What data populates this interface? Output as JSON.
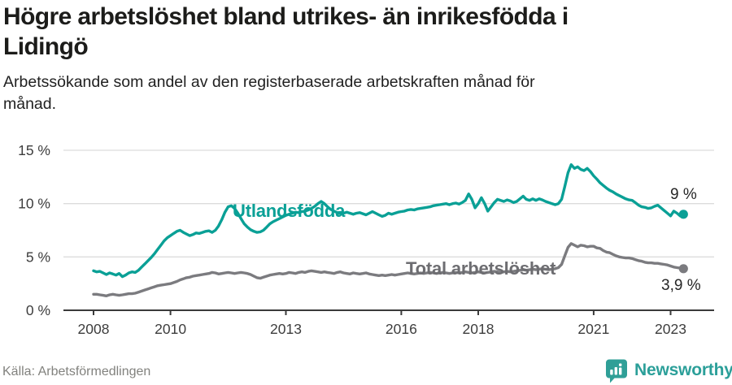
{
  "header": {
    "title_lines": [
      "Högre arbetslöshet bland utrikes- än inrikesfödda i",
      "Lidingö"
    ],
    "subtitle_lines": [
      "Arbetssökande som andel av den registerbaserade arbetskraften månad för",
      "månad."
    ]
  },
  "chart_data": {
    "type": "line",
    "title": "Högre arbetslöshet bland utrikes- än inrikesfödda i Lidingö",
    "subtitle": "Arbetssökande som andel av den registerbaserade arbetskraften månad för månad.",
    "x_start": "2008-01",
    "x_end": "2023-05",
    "x_frequency": "monthly",
    "ylim": [
      0,
      15
    ],
    "grid": "horizontal",
    "y_ticks": [
      {
        "value": 0,
        "label": "0 %"
      },
      {
        "value": 5,
        "label": "5 %"
      },
      {
        "value": 10,
        "label": "10 %"
      },
      {
        "value": 15,
        "label": "15 %"
      }
    ],
    "x_ticks": [
      {
        "year": 2008,
        "label": "2008"
      },
      {
        "year": 2010,
        "label": "2010"
      },
      {
        "year": 2013,
        "label": "2013"
      },
      {
        "year": 2016,
        "label": "2016"
      },
      {
        "year": 2018,
        "label": "2018"
      },
      {
        "year": 2021,
        "label": "2021"
      },
      {
        "year": 2023,
        "label": "2023"
      }
    ],
    "series": [
      {
        "name": "Utlandsfödda",
        "color": "#0aa096",
        "end_label": "9 %",
        "end_value": 9.0,
        "values": [
          3.7,
          3.6,
          3.65,
          3.5,
          3.35,
          3.5,
          3.4,
          3.3,
          3.45,
          3.15,
          3.3,
          3.5,
          3.6,
          3.55,
          3.75,
          4.05,
          4.35,
          4.65,
          4.95,
          5.3,
          5.7,
          6.1,
          6.5,
          6.8,
          7.0,
          7.2,
          7.4,
          7.5,
          7.3,
          7.15,
          7.0,
          7.1,
          7.25,
          7.2,
          7.3,
          7.4,
          7.45,
          7.3,
          7.5,
          7.9,
          8.5,
          9.2,
          9.7,
          9.8,
          9.55,
          9.1,
          8.6,
          8.1,
          7.8,
          7.55,
          7.4,
          7.3,
          7.35,
          7.5,
          7.8,
          8.1,
          8.3,
          8.45,
          8.6,
          8.75,
          8.9,
          9.0,
          9.1,
          9.2,
          9.15,
          9.25,
          9.3,
          9.4,
          9.55,
          9.75,
          10.0,
          10.2,
          10.0,
          9.7,
          9.45,
          9.3,
          9.15,
          9.05,
          9.1,
          9.2,
          9.1,
          9.0,
          9.1,
          9.15,
          9.05,
          8.95,
          9.1,
          9.25,
          9.1,
          8.95,
          8.8,
          8.9,
          9.1,
          9.0,
          9.1,
          9.2,
          9.25,
          9.3,
          9.4,
          9.45,
          9.4,
          9.5,
          9.55,
          9.6,
          9.65,
          9.7,
          9.8,
          9.85,
          9.9,
          9.95,
          10.0,
          9.9,
          10.0,
          10.05,
          9.95,
          10.1,
          10.3,
          10.9,
          10.4,
          9.6,
          10.0,
          10.55,
          10.0,
          9.3,
          9.7,
          10.1,
          10.4,
          10.3,
          10.2,
          10.35,
          10.25,
          10.1,
          10.2,
          10.45,
          10.7,
          10.4,
          10.3,
          10.45,
          10.3,
          10.45,
          10.35,
          10.2,
          10.1,
          10.0,
          9.9,
          10.0,
          10.4,
          11.6,
          12.9,
          13.65,
          13.3,
          13.45,
          13.2,
          13.1,
          13.3,
          13.0,
          12.6,
          12.3,
          11.95,
          11.7,
          11.45,
          11.25,
          11.1,
          10.9,
          10.75,
          10.6,
          10.45,
          10.35,
          10.3,
          10.1,
          9.85,
          9.7,
          9.65,
          9.55,
          9.6,
          9.75,
          9.85,
          9.6,
          9.35,
          9.1,
          8.85,
          9.3,
          9.1,
          8.85,
          9.0
        ]
      },
      {
        "name": "Total arbetslöshet",
        "color": "#7b7b7f",
        "end_label": "3,9 %",
        "end_value": 3.9,
        "values": [
          1.5,
          1.5,
          1.45,
          1.4,
          1.35,
          1.45,
          1.5,
          1.45,
          1.4,
          1.45,
          1.5,
          1.55,
          1.55,
          1.6,
          1.7,
          1.8,
          1.9,
          2.0,
          2.1,
          2.2,
          2.3,
          2.35,
          2.4,
          2.45,
          2.5,
          2.6,
          2.7,
          2.85,
          2.95,
          3.05,
          3.1,
          3.2,
          3.25,
          3.3,
          3.35,
          3.4,
          3.45,
          3.55,
          3.5,
          3.4,
          3.45,
          3.5,
          3.55,
          3.5,
          3.45,
          3.5,
          3.55,
          3.5,
          3.45,
          3.35,
          3.2,
          3.05,
          3.0,
          3.1,
          3.2,
          3.3,
          3.35,
          3.4,
          3.45,
          3.4,
          3.45,
          3.55,
          3.5,
          3.45,
          3.55,
          3.6,
          3.55,
          3.65,
          3.7,
          3.65,
          3.6,
          3.55,
          3.6,
          3.55,
          3.5,
          3.45,
          3.55,
          3.6,
          3.5,
          3.45,
          3.4,
          3.5,
          3.45,
          3.4,
          3.45,
          3.5,
          3.4,
          3.35,
          3.3,
          3.25,
          3.3,
          3.25,
          3.3,
          3.35,
          3.3,
          3.35,
          3.4,
          3.45,
          3.5,
          3.45,
          3.4,
          3.45,
          3.5,
          3.45,
          3.5,
          3.55,
          3.5,
          3.45,
          3.5,
          3.55,
          3.5,
          3.45,
          3.5,
          3.55,
          3.5,
          3.55,
          3.6,
          3.55,
          3.5,
          3.55,
          3.6,
          3.55,
          3.5,
          3.55,
          3.6,
          3.65,
          3.6,
          3.55,
          3.6,
          3.65,
          3.6,
          3.65,
          3.7,
          3.75,
          3.8,
          3.75,
          3.8,
          3.85,
          3.8,
          3.85,
          3.9,
          3.85,
          3.8,
          3.85,
          3.9,
          4.0,
          4.3,
          5.1,
          5.9,
          6.25,
          6.1,
          5.95,
          6.1,
          6.05,
          5.95,
          6.0,
          6.0,
          5.85,
          5.8,
          5.6,
          5.45,
          5.4,
          5.25,
          5.1,
          5.0,
          4.95,
          4.9,
          4.9,
          4.85,
          4.75,
          4.65,
          4.6,
          4.5,
          4.45,
          4.45,
          4.4,
          4.4,
          4.35,
          4.3,
          4.25,
          4.15,
          4.05,
          4.0,
          3.95,
          3.9
        ]
      }
    ],
    "colors": {
      "accent_teal": "#0aa096",
      "neutral_gray": "#7b7b7f",
      "gridline": "#dcdcdc",
      "axis": "#3b3b3b"
    }
  },
  "footer": {
    "source": "Källa: Arbetsförmedlingen",
    "brand": "Newsworthy"
  }
}
